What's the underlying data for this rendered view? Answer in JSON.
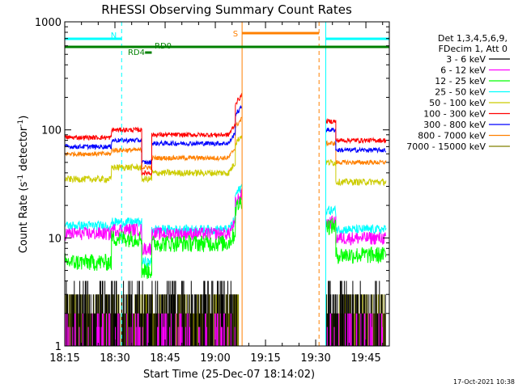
{
  "chart_data": {
    "type": "line",
    "title": "RHESSI Observing Summary Count Rates",
    "xlabel": "Start Time (25-Dec-07 18:14:02)",
    "ylabel": "Count Rate (s",
    "ylabel_sup1": "-1",
    "ylabel_mid": " detector",
    "ylabel_sup2": "-1",
    "ylabel_end": ")",
    "yscale": "log",
    "ylim": [
      1,
      1000
    ],
    "xlim": [
      "18:15",
      "19:52"
    ],
    "x_ticks": [
      "18:15",
      "18:30",
      "18:45",
      "19:00",
      "19:15",
      "19:30",
      "19:45"
    ],
    "y_ticks": [
      "1",
      "10",
      "100",
      "1000"
    ],
    "timestamp": "17-Oct-2021 10:38",
    "legend_header": [
      "Det 1,3,4,5,6,9,",
      "FDecim 1, Att 0"
    ],
    "legend_placement": "right",
    "series": [
      {
        "name": "3 - 6 keV",
        "color": "#000000"
      },
      {
        "name": "6 - 12 keV",
        "color": "#ff00ff"
      },
      {
        "name": "12 - 25 keV",
        "color": "#00ff00"
      },
      {
        "name": "25 - 50 keV",
        "color": "#00ffff"
      },
      {
        "name": "50 - 100 keV",
        "color": "#cccc00"
      },
      {
        "name": "100 - 300 keV",
        "color": "#ff0000"
      },
      {
        "name": "300 - 800 keV",
        "color": "#0000ff"
      },
      {
        "name": "800 - 7000 keV",
        "color": "#ff8000"
      },
      {
        "name": "7000 - 15000 keV",
        "color": "#808000"
      }
    ],
    "annotations": {
      "night": [
        {
          "label": "N",
          "start": "18:15",
          "end": "18:32"
        },
        {
          "label": "",
          "start": "19:33",
          "end": "19:52"
        }
      ],
      "saa": {
        "label": "S",
        "start": "19:08",
        "end": "19:31"
      },
      "rd0": {
        "label": "RD0",
        "start": "18:15",
        "end": "19:52"
      },
      "rd4": {
        "label": "RD4",
        "start": "18:39",
        "end": "18:41"
      }
    },
    "profiles": [
      {
        "t0": "18:15",
        "t1": "18:29",
        "r": 85,
        "c": 70,
        "o": 60,
        "y": 35,
        "cy": 13,
        "g": 6,
        "m": 11
      },
      {
        "t0": "18:29",
        "t1": "18:38",
        "r": 100,
        "c": 80,
        "o": 65,
        "y": 45,
        "cy": 14,
        "g": 10,
        "m": 12
      },
      {
        "t0": "18:38",
        "t1": "18:41",
        "r": 40,
        "c": 50,
        "o": 45,
        "y": 35,
        "cy": 6,
        "g": 5,
        "m": 8
      },
      {
        "t0": "18:41",
        "t1": "19:06",
        "r": 90,
        "c": 75,
        "o": 55,
        "y": 40,
        "cy": 12,
        "g": 9,
        "m": 11
      },
      {
        "t0": "19:06",
        "t1": "19:08",
        "r": 140,
        "c": 110,
        "o": 85,
        "y": 60,
        "cy": 20,
        "g": 15,
        "m": 17
      },
      {
        "t0": "19:33",
        "t1": "19:36",
        "r": 120,
        "c": 100,
        "o": 75,
        "y": 50,
        "cy": 18,
        "g": 13,
        "m": 14
      },
      {
        "t0": "19:36",
        "t1": "19:51",
        "r": 80,
        "c": 65,
        "o": 50,
        "y": 33,
        "cy": 12,
        "g": 7,
        "m": 10
      }
    ]
  }
}
